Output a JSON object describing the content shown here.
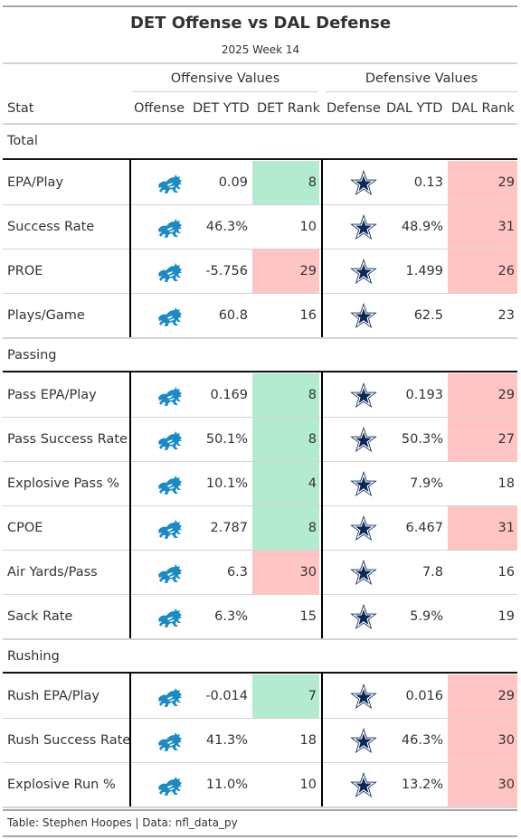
{
  "title": "DET Offense vs DAL Defense",
  "subtitle": "2025 Week 14",
  "spanners": {
    "offense": "Offensive Values",
    "defense": "Defensive Values"
  },
  "columns": [
    "Stat",
    "Offense",
    "DET YTD",
    "DET Rank",
    "Defense",
    "DAL YTD",
    "DAL Rank"
  ],
  "colors": {
    "good": "#b2ebcf",
    "bad": "#ffc5c5",
    "lions": "#1a8bc4",
    "cowboys": "#0a2858"
  },
  "icons": {
    "offense": "detroit-lions-logo-icon",
    "defense": "dallas-cowboys-star-icon"
  },
  "groups": [
    {
      "name": "Total",
      "rows": [
        {
          "stat": "EPA/Play",
          "det_ytd": "0.09",
          "det_rank": "8",
          "det_rank_color": "good",
          "dal_ytd": "0.13",
          "dal_rank": "29",
          "dal_rank_color": "bad"
        },
        {
          "stat": "Success Rate",
          "det_ytd": "46.3%",
          "det_rank": "10",
          "det_rank_color": "",
          "dal_ytd": "48.9%",
          "dal_rank": "31",
          "dal_rank_color": "bad"
        },
        {
          "stat": "PROE",
          "det_ytd": "-5.756",
          "det_rank": "29",
          "det_rank_color": "bad",
          "dal_ytd": "1.499",
          "dal_rank": "26",
          "dal_rank_color": "bad"
        },
        {
          "stat": "Plays/Game",
          "det_ytd": "60.8",
          "det_rank": "16",
          "det_rank_color": "",
          "dal_ytd": "62.5",
          "dal_rank": "23",
          "dal_rank_color": ""
        }
      ]
    },
    {
      "name": "Passing",
      "rows": [
        {
          "stat": "Pass EPA/Play",
          "det_ytd": "0.169",
          "det_rank": "8",
          "det_rank_color": "good",
          "dal_ytd": "0.193",
          "dal_rank": "29",
          "dal_rank_color": "bad"
        },
        {
          "stat": "Pass Success Rate",
          "det_ytd": "50.1%",
          "det_rank": "8",
          "det_rank_color": "good",
          "dal_ytd": "50.3%",
          "dal_rank": "27",
          "dal_rank_color": "bad"
        },
        {
          "stat": "Explosive Pass %",
          "det_ytd": "10.1%",
          "det_rank": "4",
          "det_rank_color": "good",
          "dal_ytd": "7.9%",
          "dal_rank": "18",
          "dal_rank_color": ""
        },
        {
          "stat": "CPOE",
          "det_ytd": "2.787",
          "det_rank": "8",
          "det_rank_color": "good",
          "dal_ytd": "6.467",
          "dal_rank": "31",
          "dal_rank_color": "bad"
        },
        {
          "stat": "Air Yards/Pass",
          "det_ytd": "6.3",
          "det_rank": "30",
          "det_rank_color": "bad",
          "dal_ytd": "7.8",
          "dal_rank": "16",
          "dal_rank_color": ""
        },
        {
          "stat": "Sack Rate",
          "det_ytd": "6.3%",
          "det_rank": "15",
          "det_rank_color": "",
          "dal_ytd": "5.9%",
          "dal_rank": "19",
          "dal_rank_color": ""
        }
      ]
    },
    {
      "name": "Rushing",
      "rows": [
        {
          "stat": "Rush EPA/Play",
          "det_ytd": "-0.014",
          "det_rank": "7",
          "det_rank_color": "good",
          "dal_ytd": "0.016",
          "dal_rank": "29",
          "dal_rank_color": "bad"
        },
        {
          "stat": "Rush Success Rate",
          "det_ytd": "41.3%",
          "det_rank": "18",
          "det_rank_color": "",
          "dal_ytd": "46.3%",
          "dal_rank": "30",
          "dal_rank_color": "bad"
        },
        {
          "stat": "Explosive Run %",
          "det_ytd": "11.0%",
          "det_rank": "10",
          "det_rank_color": "",
          "dal_ytd": "13.2%",
          "dal_rank": "30",
          "dal_rank_color": "bad"
        }
      ]
    }
  ],
  "footer": "Table: Stephen Hoopes | Data: nfl_data_py"
}
